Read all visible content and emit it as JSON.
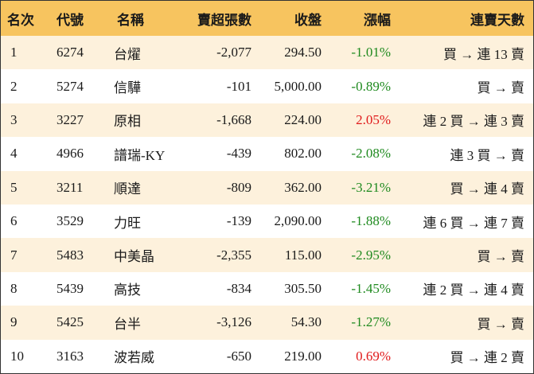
{
  "colors": {
    "header_bg": "#f7c45f",
    "stripe_bg": "#fdf1dc",
    "up": "#e0191a",
    "down": "#1f8a1f"
  },
  "headers": {
    "rank": "名次",
    "code": "代號",
    "name": "名稱",
    "net_sell": "賣超張數",
    "close": "收盤",
    "change": "漲幅",
    "streak": "連賣天數"
  },
  "rows": [
    {
      "rank": "1",
      "code": "6274",
      "name": "台燿",
      "net_sell": "-2,077",
      "close": "294.50",
      "change": "-1.01%",
      "direction": "down",
      "streak": "買 → 連 13 賣"
    },
    {
      "rank": "2",
      "code": "5274",
      "name": "信驊",
      "net_sell": "-101",
      "close": "5,000.00",
      "change": "-0.89%",
      "direction": "down",
      "streak": "買 → 賣"
    },
    {
      "rank": "3",
      "code": "3227",
      "name": "原相",
      "net_sell": "-1,668",
      "close": "224.00",
      "change": "2.05%",
      "direction": "up",
      "streak": "連 2 買 → 連 3 賣"
    },
    {
      "rank": "4",
      "code": "4966",
      "name": "譜瑞-KY",
      "net_sell": "-439",
      "close": "802.00",
      "change": "-2.08%",
      "direction": "down",
      "streak": "連 3 買 → 賣"
    },
    {
      "rank": "5",
      "code": "3211",
      "name": "順達",
      "net_sell": "-809",
      "close": "362.00",
      "change": "-3.21%",
      "direction": "down",
      "streak": "買 → 連 4 賣"
    },
    {
      "rank": "6",
      "code": "3529",
      "name": "力旺",
      "net_sell": "-139",
      "close": "2,090.00",
      "change": "-1.88%",
      "direction": "down",
      "streak": "連 6 買 → 連 7 賣"
    },
    {
      "rank": "7",
      "code": "5483",
      "name": "中美晶",
      "net_sell": "-2,355",
      "close": "115.00",
      "change": "-2.95%",
      "direction": "down",
      "streak": "買 → 賣"
    },
    {
      "rank": "8",
      "code": "5439",
      "name": "高技",
      "net_sell": "-834",
      "close": "305.50",
      "change": "-1.45%",
      "direction": "down",
      "streak": "連 2 買 → 連 4 賣"
    },
    {
      "rank": "9",
      "code": "5425",
      "name": "台半",
      "net_sell": "-3,126",
      "close": "54.30",
      "change": "-1.27%",
      "direction": "down",
      "streak": "買 → 賣"
    },
    {
      "rank": "10",
      "code": "3163",
      "name": "波若威",
      "net_sell": "-650",
      "close": "219.00",
      "change": "0.69%",
      "direction": "up",
      "streak": "買 → 連 2 賣"
    }
  ]
}
